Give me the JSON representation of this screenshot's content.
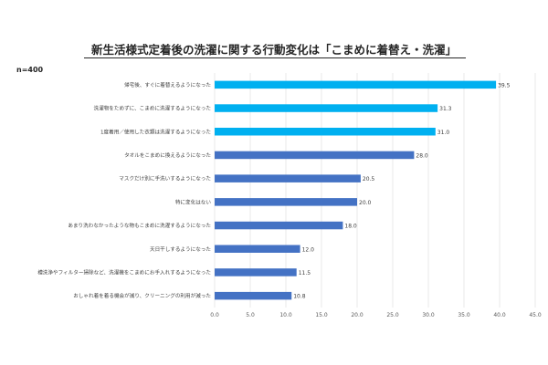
{
  "chart_data": {
    "type": "bar",
    "orientation": "horizontal",
    "title": "新生活様式定着後の洗濯に関する行動変化は「こまめに着替え・洗濯」",
    "note": "n=400",
    "categories": [
      "帰宅後、すぐに着替えるようになった",
      "洗濯物をためずに、こまめに洗濯するようになった",
      "1度着用／使用した衣類は洗濯するようになった",
      "タオルをこまめに換えるようになった",
      "マスクだけ別に手洗いするようになった",
      "特に変化はない",
      "あまり洗わなかったような物もこまめに洗濯するようになった",
      "天日干しするようになった",
      "槽洗浄やフィルター掃除など、洗濯機をこまめにお手入れするようになった",
      "おしゃれ着を着る機会が減り、クリーニングの利用が減った"
    ],
    "values": [
      39.5,
      31.3,
      31.0,
      28.0,
      20.5,
      20.0,
      18.0,
      12.0,
      11.5,
      10.8
    ],
    "value_labels": [
      "39.5",
      "31.3",
      "31.0",
      "28.0",
      "20.5",
      "20.0",
      "18.0",
      "12.0",
      "11.5",
      "10.8"
    ],
    "bar_colors": [
      "#00b0f0",
      "#00b0f0",
      "#00b0f0",
      "#4472c4",
      "#4472c4",
      "#4472c4",
      "#4472c4",
      "#4472c4",
      "#4472c4",
      "#4472c4"
    ],
    "xlim": [
      0,
      45
    ],
    "xticks": [
      "0.0",
      "5.0",
      "10.0",
      "15.0",
      "20.0",
      "25.0",
      "30.0",
      "35.0",
      "40.0",
      "45.0"
    ],
    "grid": true,
    "legend": "none"
  }
}
